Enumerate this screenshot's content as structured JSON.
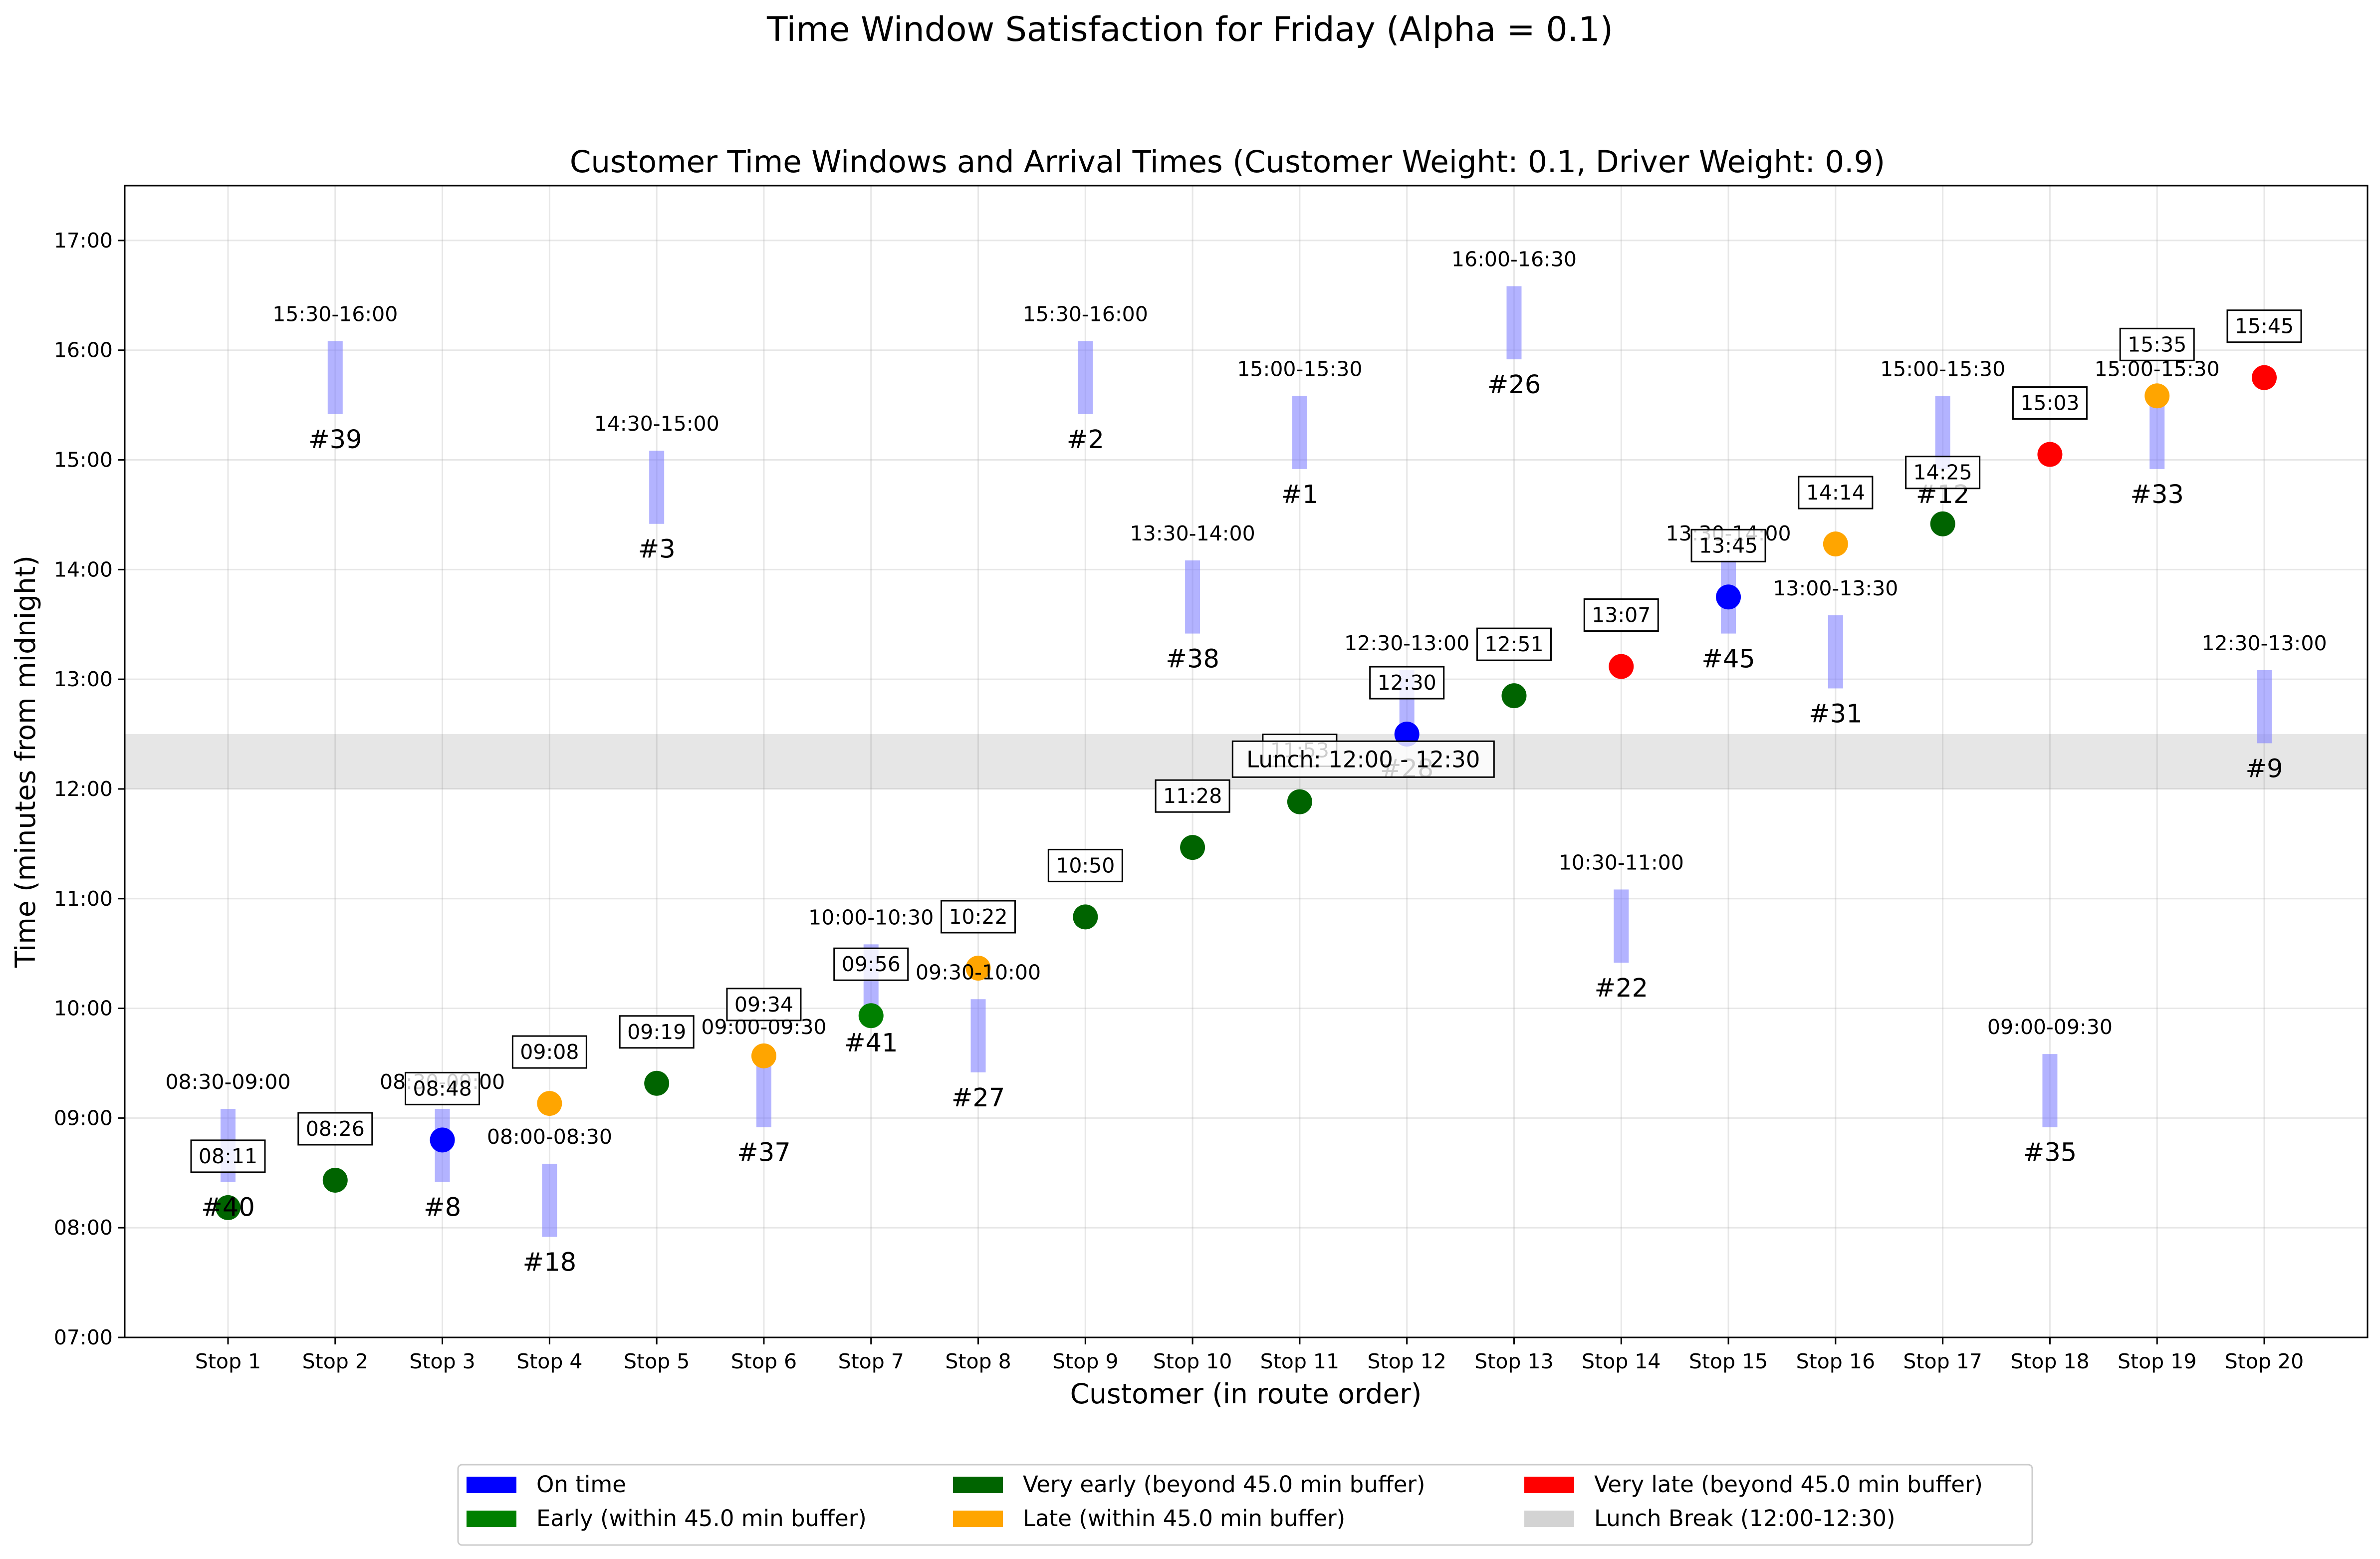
{
  "figure": {
    "suptitle": "Time Window Satisfaction for Friday (Alpha = 0.1)"
  },
  "colors": {
    "on_time": "#0000ff",
    "early": "#008000",
    "very_early": "#006400",
    "late": "#ffa500",
    "very_late": "#ff0000",
    "lunch": "#d3d3d3",
    "window": "#8080ff"
  },
  "chart_data": {
    "type": "scatter",
    "title": "Customer Time Windows and Arrival Times (Customer Weight: 0.1, Driver Weight: 0.9)",
    "xlabel": "Customer (in route order)",
    "ylabel": "Time (minutes from midnight)",
    "ylim": [
      "07:00",
      "17:30"
    ],
    "yticks": [
      "07:00",
      "08:00",
      "09:00",
      "10:00",
      "11:00",
      "12:00",
      "13:00",
      "14:00",
      "15:00",
      "16:00",
      "17:00"
    ],
    "grid": true,
    "legend_position": "bottom-center",
    "lunch_break": {
      "start": "12:00",
      "end": "12:30",
      "label": "Lunch: 12:00 - 12:30"
    },
    "stops": [
      {
        "stop": "Stop 1",
        "customer": "#40",
        "window": "08:30-09:00",
        "arrival": "08:11",
        "status": "very_early"
      },
      {
        "stop": "Stop 2",
        "customer": "#39",
        "window": "15:30-16:00",
        "arrival": "08:26",
        "status": "very_early"
      },
      {
        "stop": "Stop 3",
        "customer": "#8",
        "window": "08:30-09:00",
        "arrival": "08:48",
        "status": "on_time"
      },
      {
        "stop": "Stop 4",
        "customer": "#18",
        "window": "08:00-08:30",
        "arrival": "09:08",
        "status": "late"
      },
      {
        "stop": "Stop 5",
        "customer": "#3",
        "window": "14:30-15:00",
        "arrival": "09:19",
        "status": "very_early"
      },
      {
        "stop": "Stop 6",
        "customer": "#37",
        "window": "09:00-09:30",
        "arrival": "09:34",
        "status": "late"
      },
      {
        "stop": "Stop 7",
        "customer": "#41",
        "window": "10:00-10:30",
        "arrival": "09:56",
        "status": "early"
      },
      {
        "stop": "Stop 8",
        "customer": "#27",
        "window": "09:30-10:00",
        "arrival": "10:22",
        "status": "late"
      },
      {
        "stop": "Stop 9",
        "customer": "#2",
        "window": "15:30-16:00",
        "arrival": "10:50",
        "status": "very_early"
      },
      {
        "stop": "Stop 10",
        "customer": "#38",
        "window": "13:30-14:00",
        "arrival": "11:28",
        "status": "very_early"
      },
      {
        "stop": "Stop 11",
        "customer": "#1",
        "window": "15:00-15:30",
        "arrival": "11:53",
        "status": "very_early"
      },
      {
        "stop": "Stop 12",
        "customer": "#28",
        "window": "12:30-13:00",
        "arrival": "12:30",
        "status": "on_time"
      },
      {
        "stop": "Stop 13",
        "customer": "#26",
        "window": "16:00-16:30",
        "arrival": "12:51",
        "status": "very_early"
      },
      {
        "stop": "Stop 14",
        "customer": "#22",
        "window": "10:30-11:00",
        "arrival": "13:07",
        "status": "very_late"
      },
      {
        "stop": "Stop 15",
        "customer": "#45",
        "window": "13:30-14:00",
        "arrival": "13:45",
        "status": "on_time"
      },
      {
        "stop": "Stop 16",
        "customer": "#31",
        "window": "13:00-13:30",
        "arrival": "14:14",
        "status": "late"
      },
      {
        "stop": "Stop 17",
        "customer": "#12",
        "window": "15:00-15:30",
        "arrival": "14:25",
        "status": "very_early"
      },
      {
        "stop": "Stop 18",
        "customer": "#35",
        "window": "09:00-09:30",
        "arrival": "15:03",
        "status": "very_late"
      },
      {
        "stop": "Stop 19",
        "customer": "#33",
        "window": "15:00-15:30",
        "arrival": "15:35",
        "status": "late"
      },
      {
        "stop": "Stop 20",
        "customer": "#9",
        "window": "12:30-13:00",
        "arrival": "15:45",
        "status": "very_late"
      }
    ],
    "legend": [
      {
        "label": "On time",
        "status": "on_time"
      },
      {
        "label": "Early (within 45.0 min buffer)",
        "status": "early"
      },
      {
        "label": "Very early (beyond 45.0 min buffer)",
        "status": "very_early"
      },
      {
        "label": "Late (within 45.0 min buffer)",
        "status": "late"
      },
      {
        "label": "Very late (beyond 45.0 min buffer)",
        "status": "very_late"
      },
      {
        "label": "Lunch Break (12:00-12:30)",
        "status": "lunch"
      }
    ]
  }
}
